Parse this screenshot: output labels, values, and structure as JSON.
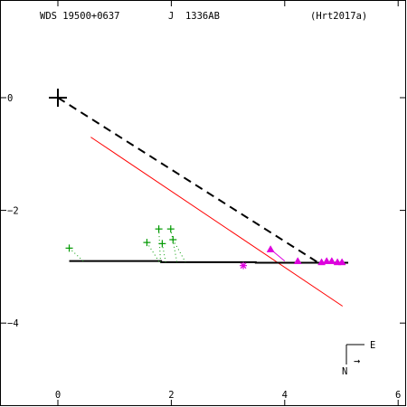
{
  "header": {
    "wds_id": "WDS 19500+0637",
    "discoverer": "J  1336AB",
    "reference": "(Hrt2017a)"
  },
  "compass": {
    "east_label": "E",
    "north_label": "N",
    "arrow_glyph": "→"
  },
  "colors": {
    "axis": "#000000",
    "orbit": "#000000",
    "line_of_nodes": "#ff0000",
    "micrometer_obs": "#009900",
    "speckle_obs": "#dd00dd"
  },
  "chart_data": {
    "type": "scatter",
    "title": "",
    "xlabel": "",
    "ylabel": "",
    "xlim": [
      -0.9,
      6.1
    ],
    "ylim": [
      -5.3,
      1.6
    ],
    "xticks": [
      0,
      2,
      4,
      6
    ],
    "yticks": [
      0,
      -2,
      -4
    ],
    "xtick_labels": [
      "0",
      "2",
      "4",
      "6"
    ],
    "ytick_labels": [
      "0",
      "−2",
      "−4"
    ],
    "primary_star": {
      "x": 0,
      "y": 0
    },
    "periastron_line": {
      "x": [
        0,
        4.58
      ],
      "y": [
        0,
        -2.92
      ]
    },
    "line_of_nodes": {
      "x": [
        0.58,
        5.02
      ],
      "y": [
        -0.7,
        -3.7
      ]
    },
    "orbit_path": {
      "x": [
        0.2,
        1.82,
        1.82,
        3.49,
        3.49,
        5.12
      ],
      "y": [
        -2.9,
        -2.9,
        -2.92,
        -2.92,
        -2.93,
        -2.93
      ]
    },
    "micrometer_observations": {
      "x": [
        0.2,
        1.57,
        1.78,
        1.84,
        1.99,
        2.03
      ],
      "y": [
        -2.67,
        -2.57,
        -2.33,
        -2.59,
        -2.33,
        -2.52
      ]
    },
    "speckle_observations": {
      "x": [
        3.75,
        4.23,
        4.65,
        4.74,
        4.83,
        4.93,
        5.01
      ],
      "y": [
        -2.69,
        -2.9,
        -2.92,
        -2.9,
        -2.9,
        -2.92,
        -2.92
      ]
    },
    "speckle_star_point": {
      "x": 3.27,
      "y": -2.98
    },
    "residual_lines": [
      {
        "x": [
          1.57,
          1.79
        ],
        "y": [
          -2.57,
          -2.92
        ]
      },
      {
        "x": [
          1.78,
          1.81
        ],
        "y": [
          -2.33,
          -2.92
        ]
      },
      {
        "x": [
          1.84,
          1.9
        ],
        "y": [
          -2.59,
          -2.92
        ]
      },
      {
        "x": [
          1.99,
          2.1
        ],
        "y": [
          -2.33,
          -2.92
        ]
      },
      {
        "x": [
          2.03,
          2.25
        ],
        "y": [
          -2.52,
          -2.92
        ]
      },
      {
        "x": [
          0.2,
          0.45
        ],
        "y": [
          -2.67,
          -2.9
        ]
      }
    ]
  }
}
